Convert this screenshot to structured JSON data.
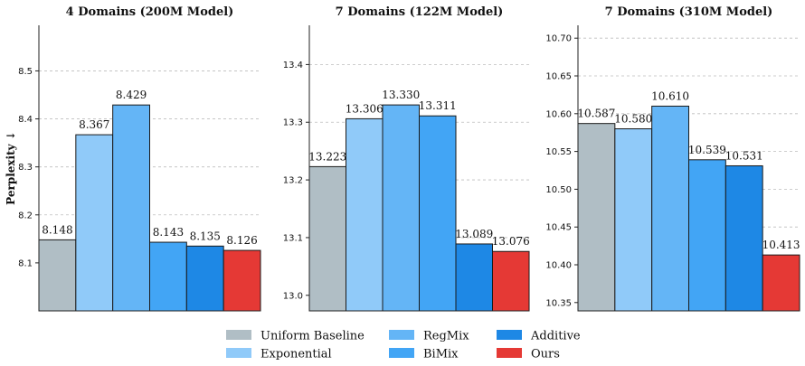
{
  "chart_data": [
    {
      "type": "bar",
      "title": "4 Domains (200M Model)",
      "ylabel": "Perplexity ↓",
      "categories": [
        "Uniform Baseline",
        "Exponential",
        "RegMix",
        "BiMix",
        "Additive",
        "Ours"
      ],
      "values": [
        8.148,
        8.367,
        8.429,
        8.143,
        8.135,
        8.126
      ],
      "value_labels": [
        "8.148",
        "8.367",
        "8.429",
        "8.143",
        "8.135",
        "8.126"
      ],
      "ylim": [
        8.0,
        8.595
      ],
      "yticks": [
        8.1,
        8.2,
        8.3,
        8.4,
        8.5
      ],
      "ytick_labels": [
        "8.1",
        "8.2",
        "8.3",
        "8.4",
        "8.5"
      ],
      "grid": true
    },
    {
      "type": "bar",
      "title": "7 Domains (122M Model)",
      "ylabel": "",
      "categories": [
        "Uniform Baseline",
        "Exponential",
        "RegMix",
        "BiMix",
        "Additive",
        "Ours"
      ],
      "values": [
        13.223,
        13.306,
        13.33,
        13.311,
        13.089,
        13.076
      ],
      "value_labels": [
        "13.223",
        "13.306",
        "13.330",
        "13.311",
        "13.089",
        "13.076"
      ],
      "ylim": [
        12.973,
        13.468
      ],
      "yticks": [
        13.0,
        13.1,
        13.2,
        13.3,
        13.4
      ],
      "ytick_labels": [
        "13.0",
        "13.1",
        "13.2",
        "13.3",
        "13.4"
      ],
      "grid": true
    },
    {
      "type": "bar",
      "title": "7 Domains (310M Model)",
      "ylabel": "",
      "categories": [
        "Uniform Baseline",
        "Exponential",
        "RegMix",
        "BiMix",
        "Additive",
        "Ours"
      ],
      "values": [
        10.587,
        10.58,
        10.61,
        10.539,
        10.531,
        10.413
      ],
      "value_labels": [
        "10.587",
        "10.580",
        "10.610",
        "10.539",
        "10.531",
        "10.413"
      ],
      "ylim": [
        10.339,
        10.717
      ],
      "yticks": [
        10.35,
        10.4,
        10.45,
        10.5,
        10.55,
        10.6,
        10.65,
        10.7
      ],
      "ytick_labels": [
        "10.35",
        "10.40",
        "10.45",
        "10.50",
        "10.55",
        "10.60",
        "10.65",
        "10.70"
      ],
      "grid": true
    }
  ],
  "legend": {
    "placement": "bottom",
    "items": [
      {
        "label": "Uniform Baseline",
        "color": "#b0bec5"
      },
      {
        "label": "Exponential",
        "color": "#90caf9"
      },
      {
        "label": "RegMix",
        "color": "#64b5f6"
      },
      {
        "label": "BiMix",
        "color": "#42a5f5"
      },
      {
        "label": "Additive",
        "color": "#1e88e5"
      },
      {
        "label": "Ours",
        "color": "#e53935"
      }
    ]
  }
}
